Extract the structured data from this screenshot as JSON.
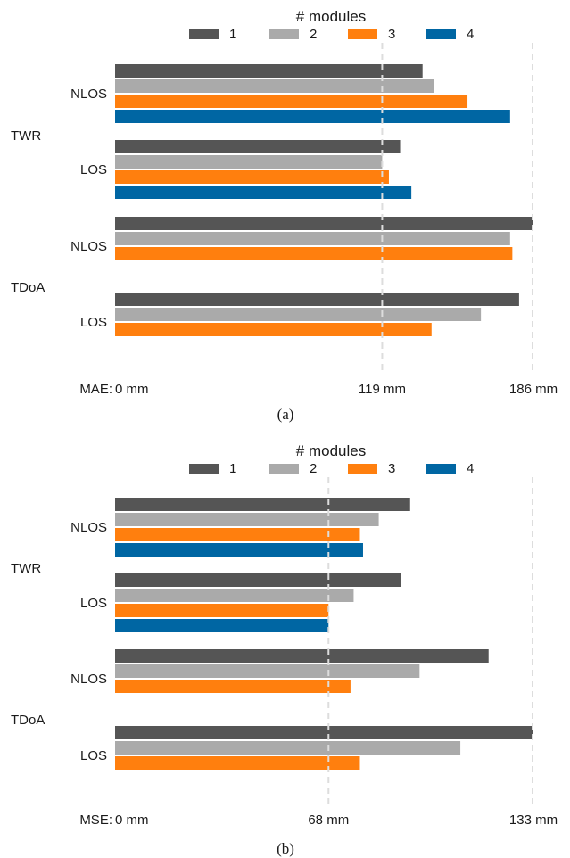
{
  "legend_title": "# modules",
  "series_labels": [
    "1",
    "2",
    "3",
    "4"
  ],
  "colors": {
    "series": [
      "#555555",
      "#aaaaaa",
      "#ff7f0e",
      "#0066a3"
    ],
    "refline": "#dddddd"
  },
  "chart_data": [
    {
      "type": "bar",
      "orientation": "horizontal",
      "caption": "(a)",
      "axis_prefix": "MAE:",
      "xlim": [
        0,
        186
      ],
      "ticks": [
        {
          "value": 0,
          "label": "0 mm"
        },
        {
          "value": 119,
          "label": "119 mm"
        },
        {
          "value": 186,
          "label": "186 mm"
        }
      ],
      "reference_lines": [
        119,
        186
      ],
      "legend": {
        "title": "# modules",
        "placement": "top",
        "entries": [
          "1",
          "2",
          "3",
          "4"
        ]
      },
      "groups": [
        {
          "label": "TWR",
          "subgroups": [
            {
              "label": "NLOS",
              "values": [
                137,
                142,
                157,
                176
              ]
            },
            {
              "label": "LOS",
              "values": [
                127,
                119,
                122,
                132
              ]
            }
          ]
        },
        {
          "label": "TDoA",
          "subgroups": [
            {
              "label": "NLOS",
              "values": [
                186,
                176,
                177
              ]
            },
            {
              "label": "LOS",
              "values": [
                180,
                163,
                141
              ]
            }
          ]
        }
      ]
    },
    {
      "type": "bar",
      "orientation": "horizontal",
      "caption": "(b)",
      "axis_prefix": "MSE:",
      "xlim": [
        0,
        133
      ],
      "ticks": [
        {
          "value": 0,
          "label": "0 mm"
        },
        {
          "value": 68,
          "label": "68 mm"
        },
        {
          "value": 133,
          "label": "133 mm"
        }
      ],
      "reference_lines": [
        68,
        133
      ],
      "legend": {
        "title": "# modules",
        "placement": "top",
        "entries": [
          "1",
          "2",
          "3",
          "4"
        ]
      },
      "groups": [
        {
          "label": "TWR",
          "subgroups": [
            {
              "label": "NLOS",
              "values": [
                94,
                84,
                78,
                79
              ]
            },
            {
              "label": "LOS",
              "values": [
                91,
                76,
                68,
                68
              ]
            }
          ]
        },
        {
          "label": "TDoA",
          "subgroups": [
            {
              "label": "NLOS",
              "values": [
                119,
                97,
                75
              ]
            },
            {
              "label": "LOS",
              "values": [
                133,
                110,
                78
              ]
            }
          ]
        }
      ]
    }
  ]
}
